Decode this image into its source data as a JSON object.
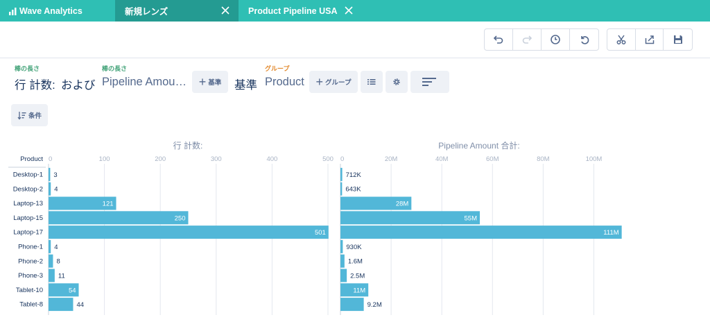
{
  "tabs": {
    "app": "Wave Analytics",
    "lens": "新規レンズ",
    "dashboard": "Product Pipeline USA"
  },
  "toolbar": {
    "icons": [
      "undo-icon",
      "redo-icon",
      "history-icon",
      "reset-icon",
      "clip-icon",
      "share-icon",
      "save-icon"
    ]
  },
  "query": {
    "measure_label_1": "棒の長さ",
    "measure_1": "行 計数:",
    "and": "および",
    "measure_label_2": "棒の長さ",
    "measure_2": "Pipeline Amou…",
    "add_measure": "基準",
    "by": "基準",
    "group_label": "グループ",
    "group": "Product",
    "add_group": "グループ",
    "filter": "条件"
  },
  "colors": {
    "accent": "#2fbfb4",
    "accent_dark": "#249b92",
    "bar": "#52b7d8"
  },
  "chart_data": {
    "type": "bar",
    "orientation": "horizontal",
    "category_header": "Product",
    "categories": [
      "Desktop-1",
      "Desktop-2",
      "Laptop-13",
      "Laptop-15",
      "Laptop-17",
      "Phone-1",
      "Phone-2",
      "Phone-3",
      "Tablet-10",
      "Tablet-8"
    ],
    "series": [
      {
        "name": "行 計数:",
        "values": [
          3,
          4,
          121,
          250,
          501,
          4,
          8,
          11,
          54,
          44
        ],
        "labels": [
          "3",
          "4",
          "121",
          "250",
          "501",
          "4",
          "8",
          "11",
          "54",
          "44"
        ],
        "xlim": [
          0,
          500
        ],
        "ticks": [
          0,
          100,
          200,
          300,
          400,
          500
        ],
        "tick_labels": [
          "0",
          "100",
          "200",
          "300",
          "400",
          "500"
        ]
      },
      {
        "name": "Pipeline Amount 合計:",
        "values": [
          712000,
          643000,
          28000000,
          55000000,
          111000000,
          930000,
          1600000,
          2500000,
          11000000,
          9200000
        ],
        "labels": [
          "712K",
          "643K",
          "28M",
          "55M",
          "111M",
          "930K",
          "1.6M",
          "2.5M",
          "11M",
          "9.2M"
        ],
        "xlim": [
          0,
          110000000
        ],
        "ticks": [
          0,
          20000000,
          40000000,
          60000000,
          80000000,
          100000000
        ],
        "tick_labels": [
          "0",
          "20M",
          "40M",
          "60M",
          "80M",
          "100M"
        ]
      }
    ],
    "grid": true
  }
}
